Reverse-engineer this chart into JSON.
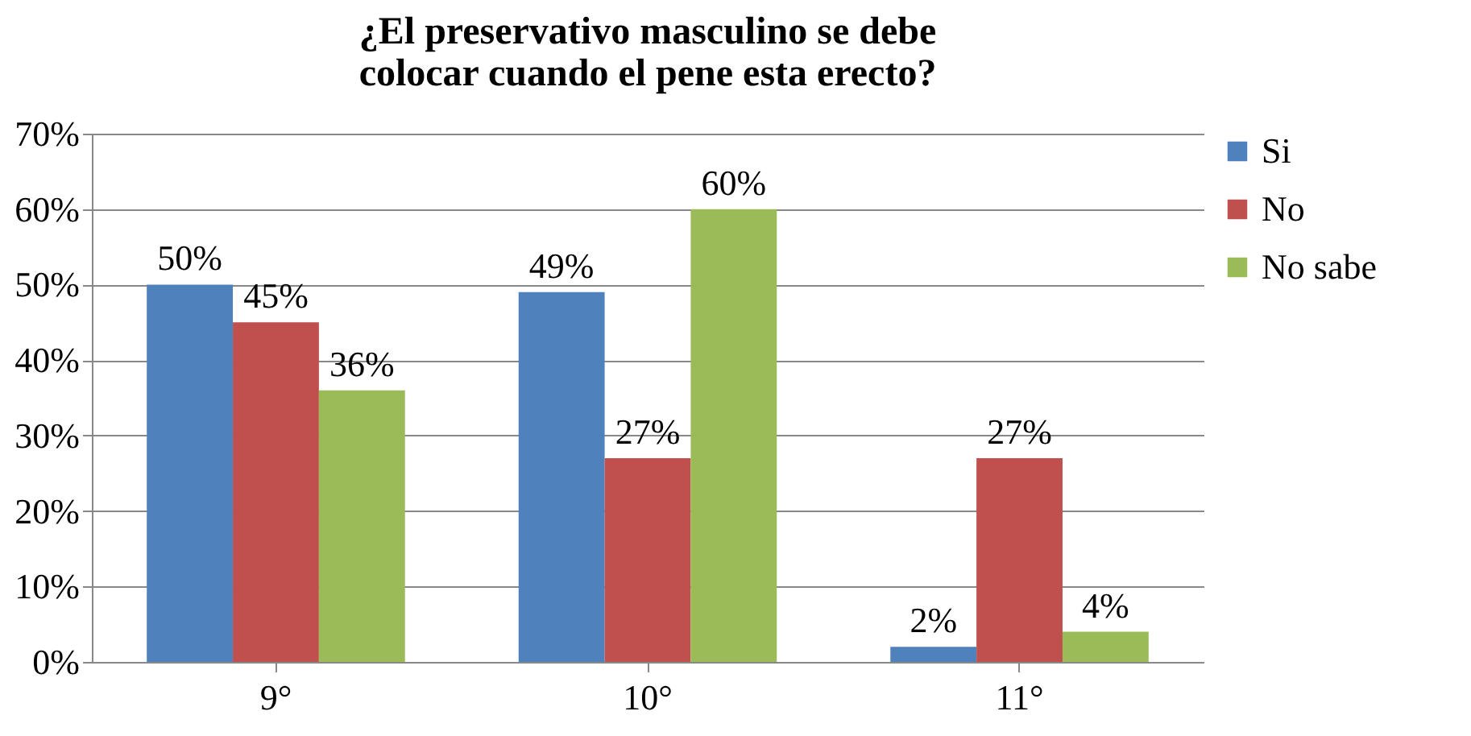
{
  "chart_data": {
    "type": "bar",
    "title": "¿El preservativo masculino se debe colocar cuando el pene esta erecto?",
    "categories": [
      "9°",
      "10°",
      "11°"
    ],
    "series": [
      {
        "name": "Si",
        "color": "#4f81bd",
        "values": [
          50,
          49,
          2
        ],
        "value_labels": [
          "50%",
          "49%",
          "2%"
        ]
      },
      {
        "name": "No",
        "color": "#c0504d",
        "values": [
          45,
          27,
          27
        ],
        "value_labels": [
          "45%",
          "27%",
          "27%"
        ]
      },
      {
        "name": "No sabe",
        "color": "#9bbb59",
        "values": [
          36,
          60,
          4
        ],
        "value_labels": [
          "36%",
          "60%",
          "4%"
        ]
      }
    ],
    "ylim": [
      0,
      70
    ],
    "yticks": [
      {
        "value": 0,
        "label": "0%"
      },
      {
        "value": 10,
        "label": "10%"
      },
      {
        "value": 20,
        "label": "20%"
      },
      {
        "value": 30,
        "label": "30%"
      },
      {
        "value": 40,
        "label": "40%"
      },
      {
        "value": 50,
        "label": "50%"
      },
      {
        "value": 60,
        "label": "60%"
      },
      {
        "value": 70,
        "label": "70%"
      }
    ],
    "grid": "y",
    "legend": "right"
  }
}
